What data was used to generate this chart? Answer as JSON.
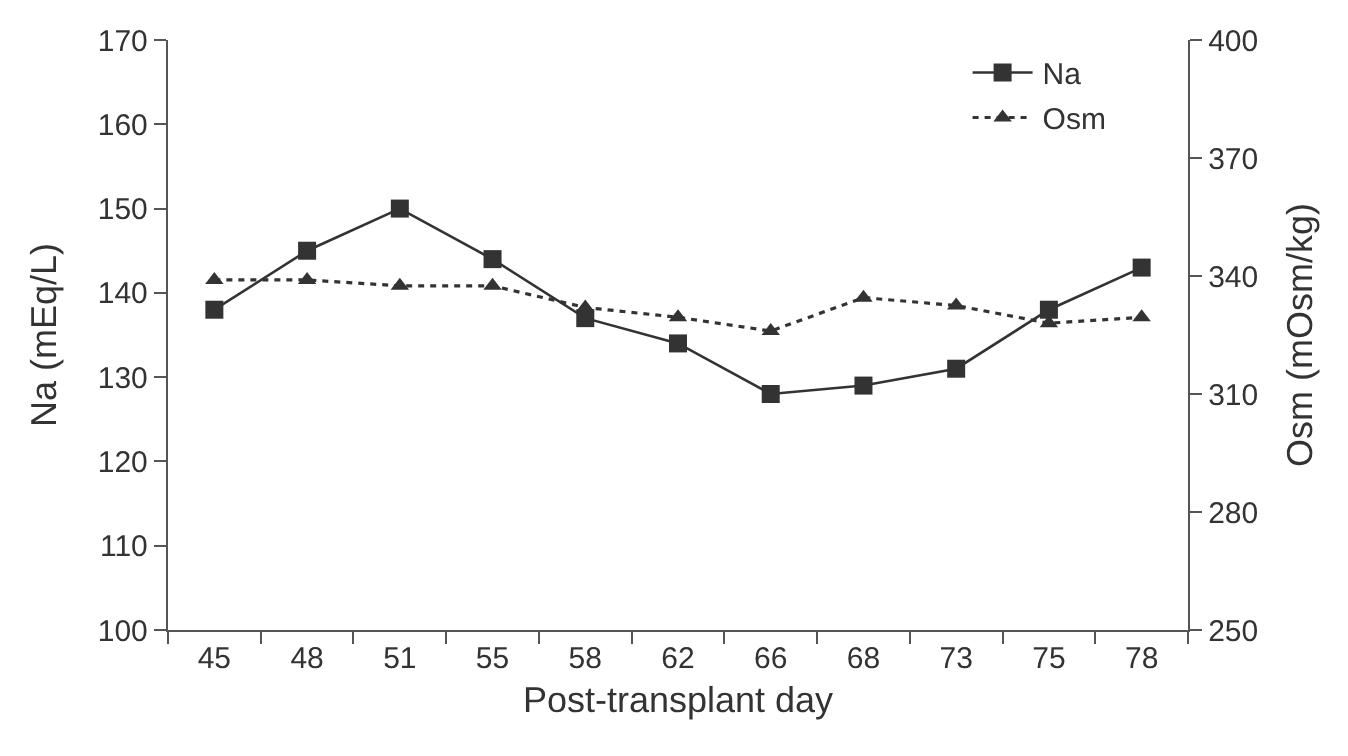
{
  "chart_data": {
    "type": "line",
    "xlabel": "Post-transplant day",
    "ylabel": "Na (mEq/L)",
    "y2label": "Osm (mOsm/kg)",
    "categories": [
      "45",
      "48",
      "51",
      "55",
      "58",
      "62",
      "66",
      "68",
      "73",
      "75",
      "78"
    ],
    "ylim": [
      100,
      170
    ],
    "yticks": [
      100,
      110,
      120,
      130,
      140,
      150,
      160,
      170
    ],
    "y2lim": [
      250,
      400
    ],
    "y2ticks": [
      250,
      280,
      310,
      340,
      370,
      400
    ],
    "legend": "top right",
    "series": [
      {
        "name": "Na",
        "color": "#333333",
        "marker": "square",
        "line_style": "solid",
        "values": [
          138,
          145,
          150,
          144,
          137,
          134,
          128,
          129,
          131,
          138,
          143
        ]
      },
      {
        "name": "Osm",
        "color": "#333333",
        "marker": "triangle",
        "line_style": "dotted",
        "axis": "y2",
        "values": [
          339,
          339,
          337.5,
          337.5,
          332,
          329.5,
          326,
          334.5,
          332.5,
          328,
          329.5
        ]
      }
    ]
  }
}
